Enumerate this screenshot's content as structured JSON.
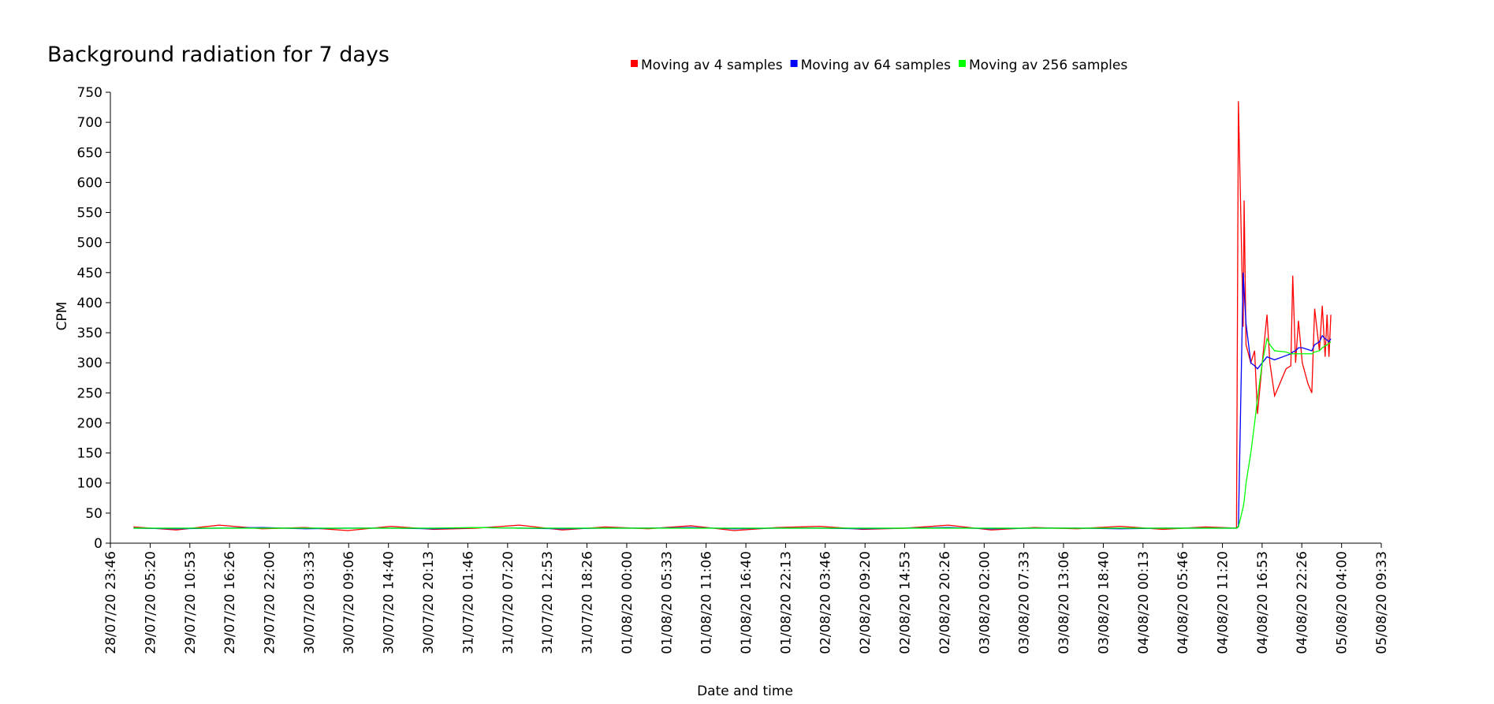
{
  "chart_data": {
    "type": "line",
    "title": "Background radiation for 7 days",
    "x_label": "Date and time",
    "y_label": "CPM",
    "x": [
      "29/07/20 03:00",
      "29/07/20 09:00",
      "29/07/20 15:00",
      "29/07/20 21:00",
      "30/07/20 03:00",
      "30/07/20 09:00",
      "30/07/20 15:00",
      "30/07/20 21:00",
      "31/07/20 03:00",
      "31/07/20 09:00",
      "31/07/20 15:00",
      "31/07/20 21:00",
      "01/08/20 03:00",
      "01/08/20 09:00",
      "01/08/20 15:00",
      "01/08/20 21:00",
      "02/08/20 03:00",
      "02/08/20 09:00",
      "02/08/20 15:00",
      "02/08/20 21:00",
      "03/08/20 03:00",
      "03/08/20 09:00",
      "03/08/20 15:00",
      "03/08/20 21:00",
      "04/08/20 03:00",
      "04/08/20 09:00",
      "04/08/20 13:18",
      "04/08/20 13:34",
      "04/08/20 14:14",
      "04/08/20 14:22",
      "04/08/20 14:38",
      "04/08/20 15:18",
      "04/08/20 15:50",
      "04/08/20 16:14",
      "04/08/20 16:54",
      "04/08/20 17:34",
      "04/08/20 17:58",
      "04/08/20 18:38",
      "04/08/20 20:14",
      "04/08/20 20:54",
      "04/08/20 21:10",
      "04/08/20 21:34",
      "04/08/20 21:58",
      "04/08/20 22:30",
      "04/08/20 23:18",
      "04/08/20 23:50",
      "05/08/20 00:14",
      "05/08/20 00:54",
      "05/08/20 01:18",
      "05/08/20 01:42",
      "05/08/20 01:58",
      "05/08/20 02:14",
      "05/08/20 02:30"
    ],
    "series": [
      {
        "name": "Moving av 4 samples",
        "color": "#ff0000",
        "values": [
          27,
          22,
          30,
          24,
          26,
          21,
          28,
          23,
          25,
          30,
          22,
          27,
          24,
          29,
          21,
          26,
          28,
          23,
          25,
          30,
          22,
          26,
          24,
          28,
          23,
          27,
          25,
          735,
          360,
          570,
          330,
          300,
          320,
          215,
          300,
          380,
          300,
          245,
          290,
          295,
          445,
          300,
          370,
          300,
          265,
          250,
          390,
          320,
          395,
          310,
          380,
          310,
          380
        ]
      },
      {
        "name": "Moving av 64 samples",
        "color": "#0000ff",
        "values": [
          25,
          24,
          25,
          26,
          24,
          25,
          25,
          24,
          26,
          25,
          24,
          25,
          25,
          26,
          24,
          25,
          25,
          24,
          25,
          26,
          24,
          25,
          25,
          24,
          25,
          25,
          25,
          28,
          450,
          420,
          365,
          300,
          295,
          290,
          300,
          310,
          308,
          305,
          312,
          315,
          318,
          320,
          325,
          325,
          322,
          320,
          330,
          335,
          345,
          340,
          338,
          335,
          340
        ]
      },
      {
        "name": "Moving av 256 samples",
        "color": "#00ff00",
        "values": [
          25,
          25,
          25,
          25,
          25,
          25,
          25,
          25,
          26,
          25,
          25,
          25,
          25,
          25,
          25,
          25,
          25,
          25,
          25,
          25,
          25,
          25,
          25,
          25,
          25,
          25,
          25,
          27,
          60,
          70,
          100,
          150,
          200,
          240,
          300,
          340,
          330,
          320,
          318,
          315,
          315,
          315,
          315,
          315,
          315,
          315,
          318,
          320,
          325,
          328,
          330,
          332,
          335
        ]
      }
    ],
    "xlim": [
      "28/07/20 23:46",
      "05/08/20 09:33"
    ],
    "xticks": [
      "28/07/20 23:46",
      "29/07/20 05:20",
      "29/07/20 10:53",
      "29/07/20 16:26",
      "29/07/20 22:00",
      "30/07/20 03:33",
      "30/07/20 09:06",
      "30/07/20 14:40",
      "30/07/20 20:13",
      "31/07/20 01:46",
      "31/07/20 07:20",
      "31/07/20 12:53",
      "31/07/20 18:26",
      "01/08/20 00:00",
      "01/08/20 05:33",
      "01/08/20 11:06",
      "01/08/20 16:40",
      "01/08/20 22:13",
      "02/08/20 03:46",
      "02/08/20 09:20",
      "02/08/20 14:53",
      "02/08/20 20:26",
      "03/08/20 02:00",
      "03/08/20 07:33",
      "03/08/20 13:06",
      "03/08/20 18:40",
      "04/08/20 00:13",
      "04/08/20 05:46",
      "04/08/20 11:20",
      "04/08/20 16:53",
      "04/08/20 22:26",
      "05/08/20 04:00",
      "05/08/20 09:33"
    ],
    "ylim": [
      0,
      750
    ],
    "yticks": [
      0,
      50,
      100,
      150,
      200,
      250,
      300,
      350,
      400,
      450,
      500,
      550,
      600,
      650,
      700,
      750
    ]
  }
}
